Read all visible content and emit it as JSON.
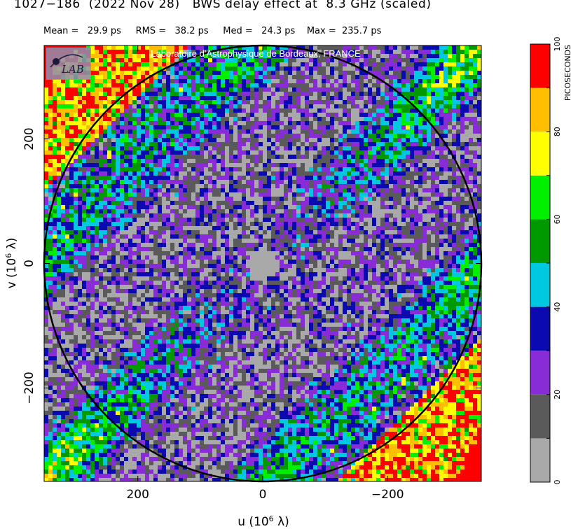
{
  "title": "1027−186  (2022 Nov 28)   BWS delay effect at  8.3 GHz (scaled)",
  "stats": "Mean =   29.9 ps     RMS =   38.2 ps     Med =   24.3 ps    Max =  235.7 ps",
  "watermark": "Laboratoire d'Astrophysique de Bordeaux, FRANCE",
  "logo_text": "LAB",
  "chart_data": {
    "type": "heatmap",
    "title": "1027−186  (2022 Nov 28)   BWS delay effect at  8.3 GHz (scaled)",
    "xlabel": "u  (10^6 λ)",
    "ylabel": "v  (10^6 λ)",
    "xlim": [
      350,
      -350
    ],
    "ylim": [
      -350,
      350
    ],
    "x_ticks": [
      200,
      0,
      -200
    ],
    "y_ticks": [
      200,
      0,
      -200
    ],
    "x_tick_labels": [
      "200",
      "0",
      "−200"
    ],
    "y_tick_labels": [
      "200",
      "0",
      "−200"
    ],
    "circle_radius": 350,
    "stats": {
      "mean_ps": 29.9,
      "rms_ps": 38.2,
      "median_ps": 24.3,
      "max_ps": 235.7
    },
    "colorbar": {
      "label": "PICOSECONDS",
      "min": 0,
      "max": 100,
      "step": 10,
      "tick_values": [
        0,
        20,
        40,
        60,
        80,
        100
      ],
      "colors": [
        "#a9a9a9",
        "#5a5a5a",
        "#8a2bd8",
        "#0a0ab0",
        "#00c8e0",
        "#009a00",
        "#00f000",
        "#ffff00",
        "#ffbf00",
        "#ff0000"
      ]
    },
    "grid": false,
    "legend": "colorbar-right"
  }
}
